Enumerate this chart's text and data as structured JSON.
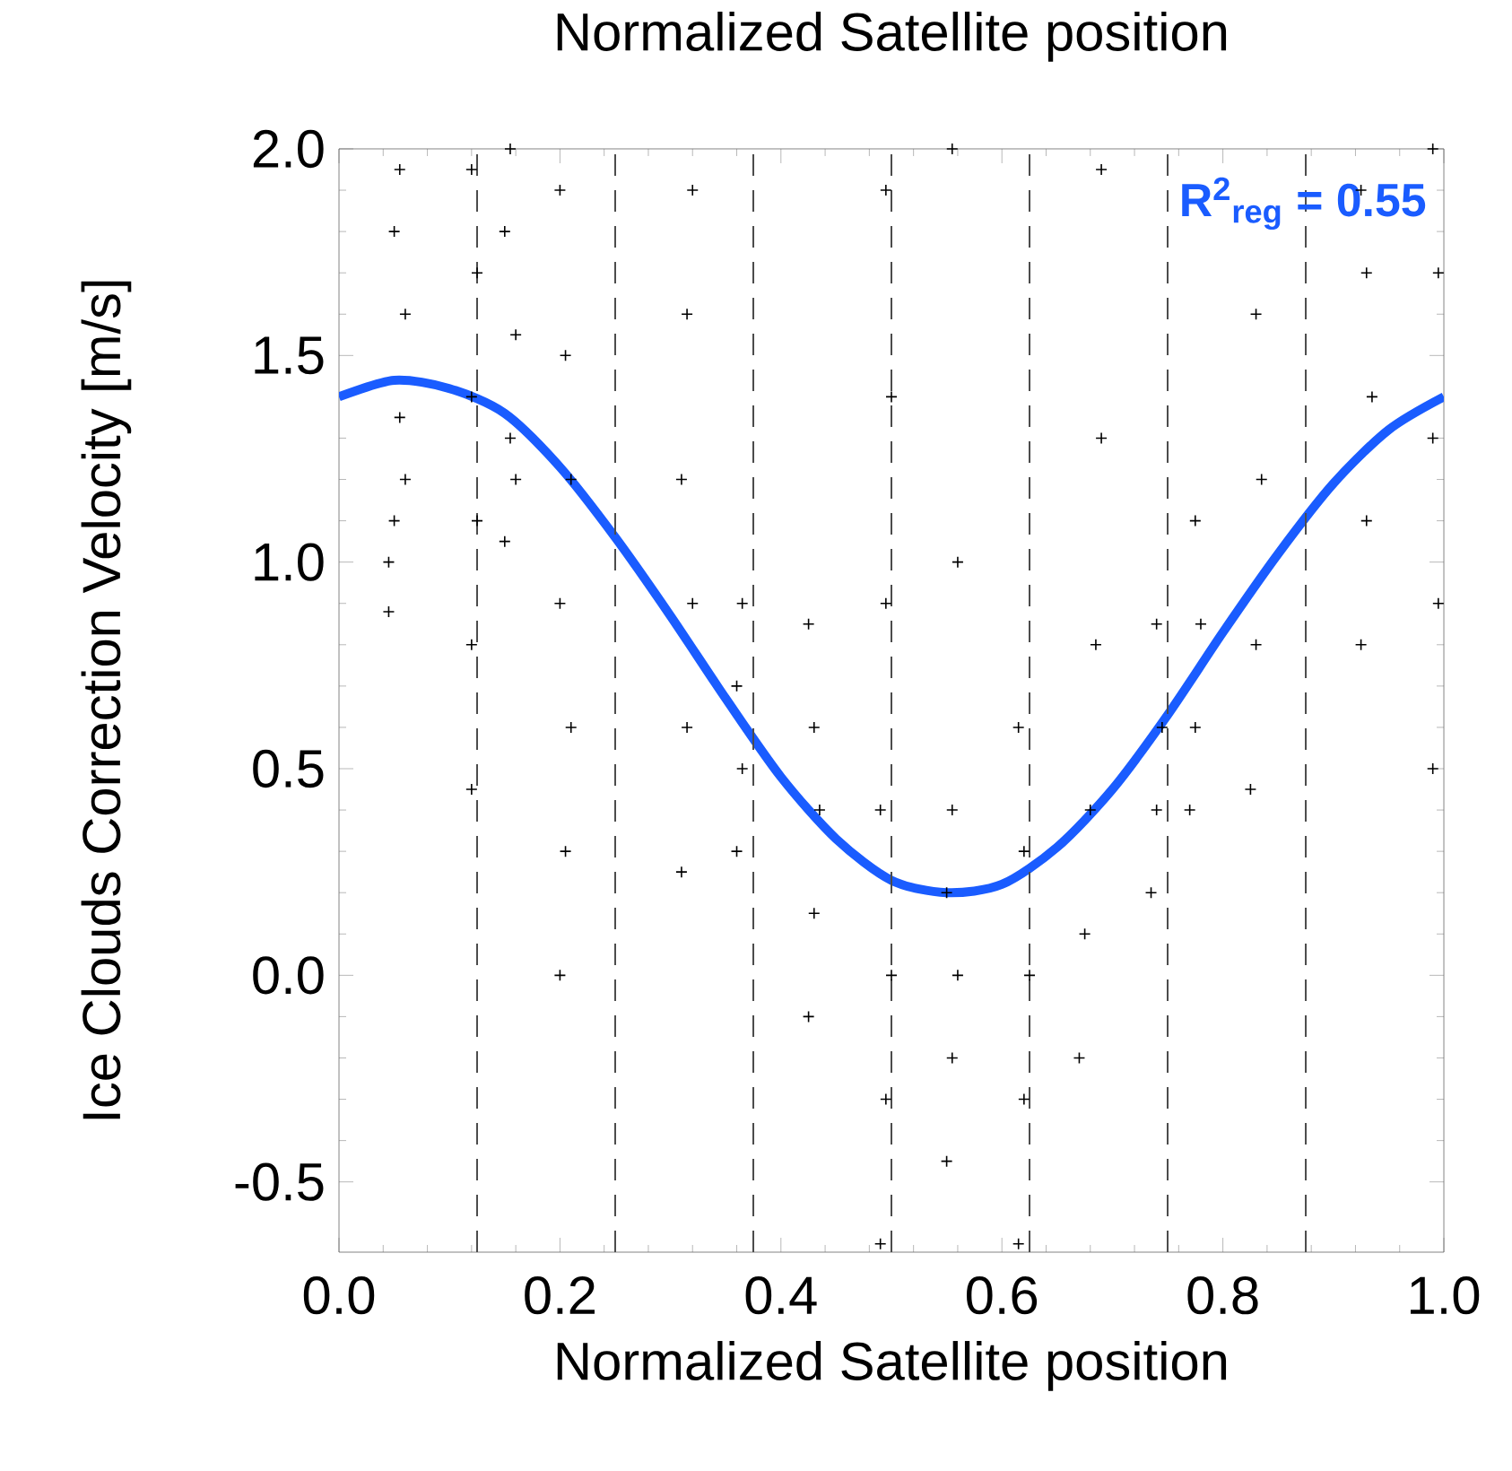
{
  "chart_data": {
    "type": "scatter",
    "title": "Normalized Satellite position",
    "xlabel": "Normalized Satellite position",
    "ylabel": "Ice Clouds Correction Velocity [m/s]",
    "xlim": [
      0,
      1
    ],
    "ylim": [
      -0.67,
      2.0
    ],
    "xticks": [
      {
        "value": 0,
        "label": "0.0"
      },
      {
        "value": 0.2,
        "label": "0.2"
      },
      {
        "value": 0.4,
        "label": "0.4"
      },
      {
        "value": 0.6,
        "label": "0.6"
      },
      {
        "value": 0.8,
        "label": "0.8"
      },
      {
        "value": 1,
        "label": "1.0"
      }
    ],
    "yticks": [
      {
        "value": -0.5,
        "label": "-0.5"
      },
      {
        "value": 0,
        "label": "0.0"
      },
      {
        "value": 0.5,
        "label": "0.5"
      },
      {
        "value": 1,
        "label": "1.0"
      },
      {
        "value": 1.5,
        "label": "1.5"
      },
      {
        "value": 2,
        "label": "2.0"
      }
    ],
    "series": [
      {
        "marker": "cross",
        "color": "#000000",
        "x": [
          0.045,
          0.05,
          0.055,
          0.06,
          0.05,
          0.055,
          0.06,
          0.045,
          0.12,
          0.12,
          0.125,
          0.12,
          0.125,
          0.12,
          0.15,
          0.155,
          0.16,
          0.15,
          0.155,
          0.16,
          0.2,
          0.205,
          0.21,
          0.2,
          0.21,
          0.205,
          0.2,
          0.31,
          0.315,
          0.32,
          0.31,
          0.315,
          0.32,
          0.36,
          0.365,
          0.36,
          0.365,
          0.425,
          0.43,
          0.435,
          0.43,
          0.425,
          0.49,
          0.495,
          0.5,
          0.49,
          0.495,
          0.5,
          0.495,
          0.55,
          0.555,
          0.56,
          0.55,
          0.555,
          0.56,
          0.555,
          0.615,
          0.62,
          0.625,
          0.62,
          0.615,
          0.67,
          0.675,
          0.68,
          0.685,
          0.69,
          0.69,
          0.735,
          0.74,
          0.745,
          0.74,
          0.77,
          0.775,
          0.78,
          0.775,
          0.825,
          0.83,
          0.835,
          0.83,
          0.925,
          0.93,
          0.935,
          0.93,
          0.925,
          0.99,
          0.995,
          0.99,
          0.995,
          0.99
        ],
        "values": [
          0.88,
          1.1,
          1.35,
          1.6,
          1.8,
          1.95,
          1.2,
          1.0,
          0.45,
          0.8,
          1.1,
          1.4,
          1.7,
          1.95,
          1.05,
          1.3,
          1.55,
          1.8,
          2.0,
          1.2,
          0.0,
          0.3,
          0.6,
          0.9,
          1.2,
          1.5,
          1.9,
          0.25,
          0.6,
          0.9,
          1.2,
          1.6,
          1.9,
          0.3,
          0.5,
          0.7,
          0.9,
          -0.1,
          0.15,
          0.4,
          0.6,
          0.85,
          -0.65,
          -0.3,
          0.0,
          0.4,
          0.9,
          1.4,
          1.9,
          -0.45,
          -0.2,
          0.0,
          0.2,
          0.4,
          1.0,
          2.0,
          -0.65,
          -0.3,
          0.0,
          0.3,
          0.6,
          -0.2,
          0.1,
          0.4,
          0.8,
          1.3,
          1.95,
          0.2,
          0.4,
          0.6,
          0.85,
          0.4,
          0.6,
          0.85,
          1.1,
          0.45,
          0.8,
          1.2,
          1.6,
          0.8,
          1.1,
          1.4,
          1.7,
          1.9,
          0.5,
          0.9,
          1.3,
          1.7,
          2.0
        ]
      },
      {
        "type": "line",
        "color": "#1a5cff",
        "x": [
          0,
          0.05,
          0.1,
          0.15,
          0.2,
          0.25,
          0.3,
          0.35,
          0.4,
          0.45,
          0.5,
          0.55,
          0.6,
          0.65,
          0.7,
          0.75,
          0.8,
          0.85,
          0.9,
          0.95,
          1.0
        ],
        "values": [
          1.4,
          1.44,
          1.42,
          1.36,
          1.23,
          1.06,
          0.87,
          0.67,
          0.48,
          0.33,
          0.23,
          0.2,
          0.22,
          0.31,
          0.45,
          0.63,
          0.83,
          1.02,
          1.19,
          1.32,
          1.4
        ]
      }
    ],
    "ref_lines": [
      {
        "axis": "x",
        "value": 0.125,
        "line_style": "dashed"
      },
      {
        "axis": "x",
        "value": 0.25,
        "line_style": "dashed"
      },
      {
        "axis": "x",
        "value": 0.375,
        "line_style": "dashed"
      },
      {
        "axis": "x",
        "value": 0.5,
        "line_style": "dashed"
      },
      {
        "axis": "x",
        "value": 0.625,
        "line_style": "dashed"
      },
      {
        "axis": "x",
        "value": 0.75,
        "line_style": "dashed"
      },
      {
        "axis": "x",
        "value": 0.875,
        "line_style": "dashed"
      }
    ],
    "annotations": [
      "R$^{2}$$_{reg}$ = 0.55"
    ]
  }
}
